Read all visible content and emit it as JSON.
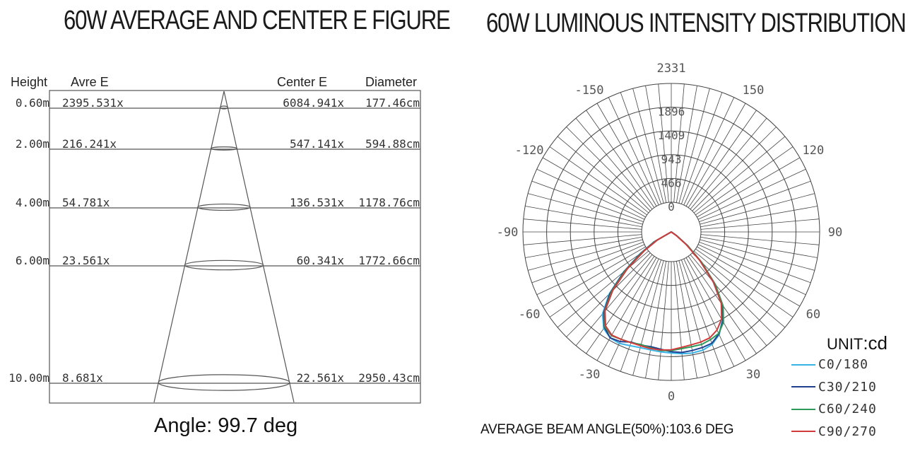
{
  "left": {
    "title": "60W AVERAGE AND CENTER E FIGURE",
    "headers": {
      "height": "Height",
      "avre": "Avre E",
      "center": "Center E",
      "diameter": "Diameter"
    },
    "rows": [
      {
        "height": "0.60m",
        "avre": "2395.531x",
        "center": "6084.941x",
        "diameter": "177.46cm"
      },
      {
        "height": "2.00m",
        "avre": "216.241x",
        "center": "547.141x",
        "diameter": "594.88cm"
      },
      {
        "height": "4.00m",
        "avre": "54.781x",
        "center": "136.531x",
        "diameter": "1178.76cm"
      },
      {
        "height": "6.00m",
        "avre": "23.561x",
        "center": "60.341x",
        "diameter": "1772.66cm"
      },
      {
        "height": "10.00m",
        "avre": "8.681x",
        "center": "22.561x",
        "diameter": "2950.43cm"
      }
    ],
    "angle_text": "Angle: 99.7 deg"
  },
  "right": {
    "title": "60W LUMINOUS INTENSITY DISTRIBUTION",
    "beam_text": "AVERAGE BEAM ANGLE(50%):103.6 DEG",
    "unit_prefix": "UNIT",
    "unit_suffix": ":cd"
  },
  "chart_data": {
    "type": "polar",
    "radial_ticks": [
      "0",
      "466",
      "943",
      "1409",
      "1896",
      "2331"
    ],
    "radial_max": 2331,
    "angle_labels": [
      {
        "deg": 180,
        "text": "2331"
      },
      {
        "deg": -150,
        "text": "-150"
      },
      {
        "deg": 150,
        "text": "150"
      },
      {
        "deg": -120,
        "text": "-120"
      },
      {
        "deg": 120,
        "text": "120"
      },
      {
        "deg": -90,
        "text": "-90"
      },
      {
        "deg": 90,
        "text": "90"
      },
      {
        "deg": -60,
        "text": "-60"
      },
      {
        "deg": 60,
        "text": "60"
      },
      {
        "deg": -30,
        "text": "-30"
      },
      {
        "deg": 30,
        "text": "30"
      },
      {
        "deg": 0,
        "text": "0"
      }
    ],
    "angles": [
      -60,
      -55,
      -50,
      -45,
      -40,
      -35,
      -30,
      -25,
      -20,
      -15,
      -10,
      -5,
      0,
      5,
      10,
      15,
      20,
      25,
      30,
      35,
      40,
      45,
      50,
      55,
      60
    ],
    "series": [
      {
        "name": "C0/180",
        "color": "#39b3e6",
        "values": [
          320,
          600,
          980,
          1380,
          1680,
          1850,
          1920,
          1930,
          1900,
          1880,
          1880,
          1890,
          1900,
          1920,
          1930,
          1920,
          1880,
          1780,
          1600,
          1370,
          1020,
          630,
          320,
          100,
          0
        ]
      },
      {
        "name": "C30/210",
        "color": "#1f3f8f",
        "values": [
          300,
          590,
          970,
          1360,
          1650,
          1830,
          1920,
          1900,
          1840,
          1840,
          1830,
          1850,
          1880,
          1900,
          1890,
          1880,
          1860,
          1770,
          1620,
          1400,
          1050,
          650,
          330,
          110,
          0
        ]
      },
      {
        "name": "C60/240",
        "color": "#2e9a5a",
        "values": [
          280,
          560,
          940,
          1330,
          1630,
          1820,
          1880,
          1860,
          1850,
          1830,
          1850,
          1870,
          1860,
          1840,
          1830,
          1830,
          1800,
          1760,
          1640,
          1420,
          1080,
          680,
          340,
          110,
          0
        ]
      },
      {
        "name": "C90/270",
        "color": "#d23a3a",
        "values": [
          250,
          520,
          900,
          1300,
          1620,
          1800,
          1870,
          1860,
          1850,
          1850,
          1860,
          1860,
          1850,
          1820,
          1800,
          1790,
          1770,
          1700,
          1580,
          1370,
          1040,
          640,
          300,
          90,
          0
        ]
      }
    ]
  }
}
